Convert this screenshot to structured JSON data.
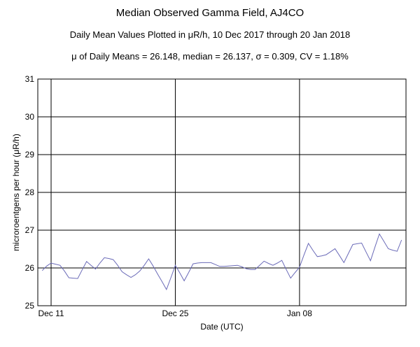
{
  "chart_data": {
    "type": "line",
    "title": "Median Observed Gamma Field, AJ4CO",
    "subtitle": "Daily Mean Values Plotted in μR/h, 10 Dec 2017 through 20 Jan 2018",
    "stats_line": "μ of Daily Means = 26.148,   median = 26.137,   σ = 0.309,   CV = 1.18%",
    "xlabel": "Date (UTC)",
    "ylabel": "microroentgens per hour (μR/h)",
    "ylim": [
      25,
      31
    ],
    "yticks": [
      "25",
      "26",
      "27",
      "28",
      "29",
      "30",
      "31"
    ],
    "xticks": [
      {
        "day": 1,
        "label": "Dec 11"
      },
      {
        "day": 15,
        "label": "Dec 25"
      },
      {
        "day": 29,
        "label": "Jan 08"
      }
    ],
    "xlim": [
      -0.5,
      41
    ],
    "grid": true,
    "line_color": "#6b6bb8",
    "series": [
      {
        "x": [
          0,
          0.5,
          1,
          1.5,
          2,
          2.5,
          3,
          3.5,
          4,
          4.5,
          5,
          5.5,
          6,
          6.5,
          7,
          7.5,
          8,
          8.5,
          9,
          9.5,
          10,
          10.5,
          11,
          11.5,
          12,
          12.5,
          13,
          13.5,
          14,
          14.5,
          15,
          15.5,
          16,
          16.5,
          17,
          17.5,
          18,
          18.5,
          19,
          19.5,
          20,
          20.5,
          21,
          21.5,
          22,
          22.5,
          23,
          23.5,
          24,
          24.5,
          25,
          25.5,
          26,
          26.5,
          27,
          27.5,
          28,
          28.5,
          29,
          29.5,
          30,
          30.5,
          31,
          31.5,
          32,
          32.5,
          33,
          33.5,
          34,
          34.5,
          35,
          35.5,
          36,
          36.5,
          37,
          37.5,
          38,
          38.5,
          39,
          39.5,
          40,
          40.5
        ],
        "values": [
          25.93,
          26.05,
          26.13,
          26.1,
          26.07,
          25.92,
          25.74,
          25.73,
          25.72,
          25.95,
          26.17,
          26.07,
          25.97,
          26.13,
          26.27,
          26.25,
          26.22,
          26.07,
          25.9,
          25.82,
          25.75,
          25.82,
          25.92,
          26.07,
          26.24,
          26.05,
          25.84,
          25.64,
          25.43,
          25.74,
          26.07,
          25.87,
          25.66,
          25.88,
          26.11,
          26.13,
          26.14,
          26.14,
          26.14,
          26.09,
          26.04,
          26.04,
          26.05,
          26.06,
          26.07,
          26.03,
          25.98,
          25.96,
          25.96,
          26.07,
          26.18,
          26.12,
          26.07,
          26.13,
          26.2,
          25.96,
          25.73,
          25.88,
          26.02,
          26.34,
          26.65,
          26.47,
          26.3,
          26.32,
          26.35,
          26.43,
          26.51,
          26.33,
          26.14,
          26.38,
          26.62,
          26.64,
          26.66,
          26.42,
          26.19,
          26.55,
          26.9,
          26.71,
          26.51,
          26.47,
          26.44,
          26.74
        ]
      }
    ]
  }
}
